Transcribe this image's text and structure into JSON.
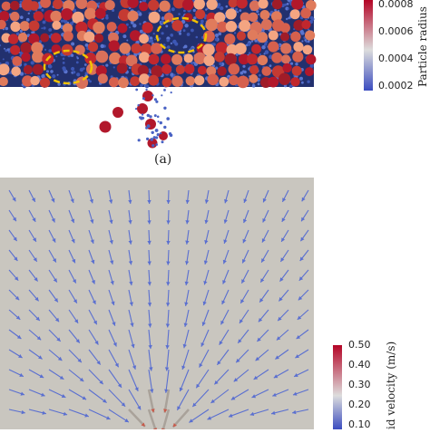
{
  "figure_a": {
    "label": "(a)",
    "colorbar": {
      "title": "Particle radius",
      "ticks": [
        "0.0008",
        "0.0006",
        "0.0004",
        "0.0002"
      ],
      "tick_values": [
        0.0008,
        0.0006,
        0.0004,
        0.0002
      ],
      "range": [
        0.0002,
        0.0009
      ],
      "colors": {
        "low": "#3b4cc0",
        "mid": "#dddddd",
        "high": "#b40426"
      }
    },
    "highlight_color": "#f2c200",
    "background_particle_color": "#2c3e8c"
  },
  "figure_b": {
    "background_color": "#c9c6bf",
    "arrow_color": "#5a6fd0",
    "colorbar": {
      "title": "Fluid velocity (m/s)",
      "visible_title": "id velocity (m/s)",
      "ticks": [
        "0.50",
        "0.40",
        "0.30",
        "0.20",
        "0.10"
      ],
      "tick_values": [
        0.5,
        0.4,
        0.3,
        0.2,
        0.1
      ],
      "range": [
        0.08,
        0.5
      ],
      "colors": {
        "low": "#3b4cc0",
        "mid": "#dddddd",
        "high": "#b40426"
      }
    }
  }
}
